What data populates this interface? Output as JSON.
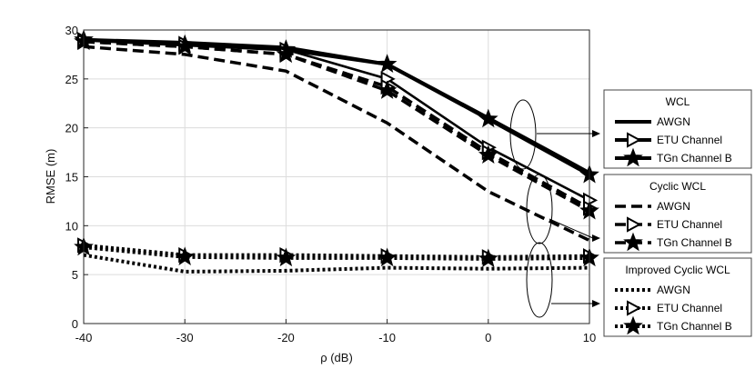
{
  "chart_data": {
    "type": "line",
    "title": "",
    "xlabel": "ρ (dB)",
    "ylabel": "RMSE (m)",
    "x": [
      -40,
      -30,
      -20,
      -10,
      0,
      10
    ],
    "x_ticks": [
      "-40",
      "-30",
      "-20",
      "-10",
      "0",
      "10"
    ],
    "y_ticks": [
      "0",
      "5",
      "10",
      "15",
      "20",
      "25",
      "30"
    ],
    "xlim": [
      -40,
      10
    ],
    "ylim": [
      0,
      30
    ],
    "grid": true,
    "series": [
      {
        "group": "WCL",
        "name": "AWGN",
        "values": [
          29.0,
          28.7,
          28.2,
          26.5,
          21.0,
          15.4
        ]
      },
      {
        "group": "WCL",
        "name": "ETU Channel",
        "values": [
          29.0,
          28.6,
          28.0,
          25.0,
          18.0,
          12.6
        ]
      },
      {
        "group": "WCL",
        "name": "TGn Channel B",
        "values": [
          29.0,
          28.5,
          28.0,
          26.5,
          20.9,
          15.2
        ]
      },
      {
        "group": "Cyclic WCL",
        "name": "AWGN",
        "values": [
          28.3,
          27.5,
          25.8,
          20.5,
          13.5,
          8.5
        ]
      },
      {
        "group": "Cyclic WCL",
        "name": "ETU Channel",
        "values": [
          28.8,
          28.3,
          27.5,
          24.2,
          17.5,
          11.8
        ]
      },
      {
        "group": "Cyclic WCL",
        "name": "TGn Channel B",
        "values": [
          28.8,
          28.3,
          27.5,
          23.8,
          17.2,
          11.5
        ]
      },
      {
        "group": "Improved Cyclic WCL",
        "name": "AWGN",
        "values": [
          7.0,
          5.3,
          5.4,
          5.7,
          5.6,
          5.7
        ]
      },
      {
        "group": "Improved Cyclic WCL",
        "name": "ETU Channel",
        "values": [
          8.0,
          7.0,
          7.0,
          6.9,
          6.8,
          6.9
        ]
      },
      {
        "group": "Improved Cyclic WCL",
        "name": "TGn Channel B",
        "values": [
          7.8,
          6.8,
          6.7,
          6.7,
          6.6,
          6.7
        ]
      }
    ],
    "legend": {
      "placement": "right",
      "groups": [
        {
          "title": "WCL",
          "entries": [
            "AWGN",
            "ETU Channel",
            "TGn Channel B"
          ]
        },
        {
          "title": "Cyclic WCL",
          "entries": [
            "AWGN",
            "ETU Channel",
            "TGn Channel B"
          ]
        },
        {
          "title": "Improved Cyclic WCL",
          "entries": [
            "AWGN",
            "ETU Channel",
            "TGn Channel B"
          ]
        }
      ]
    },
    "colors": {
      "lines": "#000000",
      "grid": "#dcdcdc",
      "axis": "#262626"
    }
  }
}
